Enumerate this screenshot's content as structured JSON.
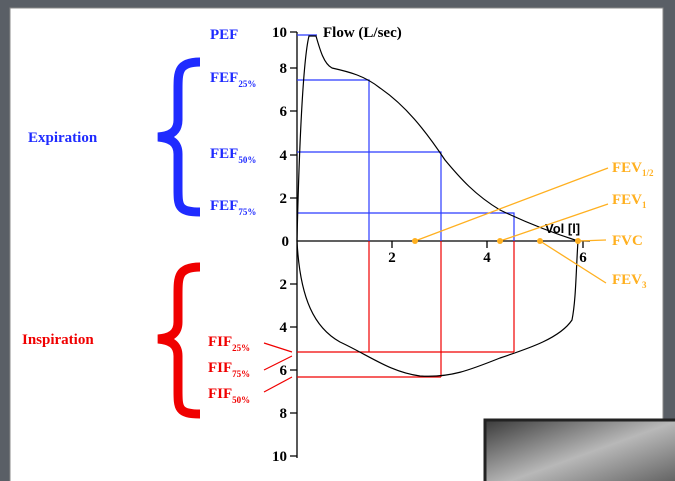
{
  "axis": {
    "y_label": "Flow (L/sec)",
    "x_label": "Vol [l]",
    "y_ticks_expiration": [
      "10",
      "8",
      "6",
      "4",
      "2",
      "0"
    ],
    "y_ticks_inspiration": [
      "2",
      "4",
      "6",
      "8",
      "10"
    ],
    "x_ticks": [
      "2",
      "4",
      "6"
    ]
  },
  "expiration": {
    "label": "Expiration",
    "items": [
      {
        "text": "PEF"
      },
      {
        "text": "FEF",
        "sub": "25%"
      },
      {
        "text": "FEF",
        "sub": "50%"
      },
      {
        "text": "FEF",
        "sub": "75%"
      }
    ]
  },
  "inspiration": {
    "label": "Inspiration",
    "items": [
      {
        "text": "FIF",
        "sub": "25%"
      },
      {
        "text": "FIF",
        "sub": "75%"
      },
      {
        "text": "FIF",
        "sub": "50%"
      }
    ]
  },
  "volumes": [
    {
      "text": "FEV",
      "sub": "1/2"
    },
    {
      "text": "FEV",
      "sub": "1"
    },
    {
      "text": "FVC"
    },
    {
      "text": "FEV",
      "sub": "3"
    }
  ]
}
